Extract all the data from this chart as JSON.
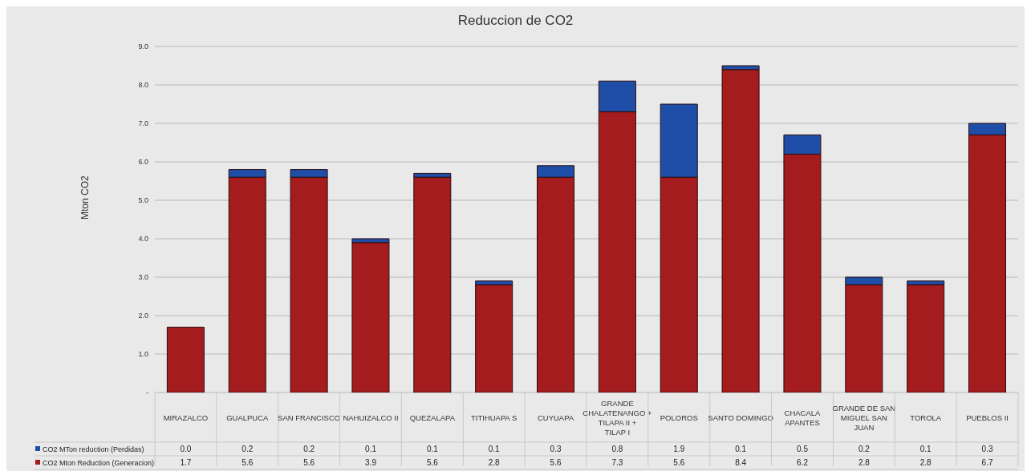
{
  "chart_data": {
    "type": "bar",
    "title": "Reduccion de CO2",
    "ylabel": "Mton CO2",
    "stacked": true,
    "grid": "y",
    "legend": "bottom",
    "categories": [
      "MIRAZALCO",
      "GUALPUCA",
      "SAN FRANCISCO",
      "NAHUIZALCO II",
      "QUEZALAPA",
      "TITIHUAPA S",
      "CUYUAPA",
      "GRANDE CHALATENANGO + TILAPA II + TILAP I",
      "POLOROS",
      "SANTO DOMINGO",
      "CHACALA APANTES",
      "GRANDE DE SAN MIGUEL SAN JUAN",
      "TOROLA",
      "PUEBLOS II"
    ],
    "series": [
      {
        "name": "CO2 Mton Reduction (Generacion)",
        "color": "#a51c1f",
        "values": [
          1.7,
          5.6,
          5.6,
          3.9,
          5.6,
          2.8,
          5.6,
          7.3,
          5.6,
          8.4,
          6.2,
          2.8,
          2.8,
          6.7
        ],
        "value_labels": [
          "1.7",
          "5.6",
          "5.6",
          "3.9",
          "5.6",
          "2.8",
          "5.6",
          "7.3",
          "5.6",
          "8.4",
          "6.2",
          "2.8",
          "2.8",
          "6.7"
        ]
      },
      {
        "name": "CO2 MTon reduction (Perdidas)",
        "color": "#1f4ea8",
        "values": [
          0.0,
          0.2,
          0.2,
          0.1,
          0.1,
          0.1,
          0.3,
          0.8,
          1.9,
          0.1,
          0.5,
          0.2,
          0.1,
          0.3
        ],
        "value_labels": [
          "0.0",
          "0.2",
          "0.2",
          "0.1",
          "0.1",
          "0.1",
          "0.3",
          "0.8",
          "1.9",
          "0.1",
          "0.5",
          "0.2",
          "0.1",
          "0.3"
        ]
      }
    ],
    "ylim": [
      0,
      9
    ],
    "yticks": [
      {
        "value": 0,
        "label": "-"
      },
      {
        "value": 1,
        "label": "1.0"
      },
      {
        "value": 2,
        "label": "2.0"
      },
      {
        "value": 3,
        "label": "3.0"
      },
      {
        "value": 4,
        "label": "4.0"
      },
      {
        "value": 5,
        "label": "5.0"
      },
      {
        "value": 6,
        "label": "6.0"
      },
      {
        "value": 7,
        "label": "7.0"
      },
      {
        "value": 8,
        "label": "8.0"
      },
      {
        "value": 9,
        "label": "9.0"
      }
    ]
  }
}
